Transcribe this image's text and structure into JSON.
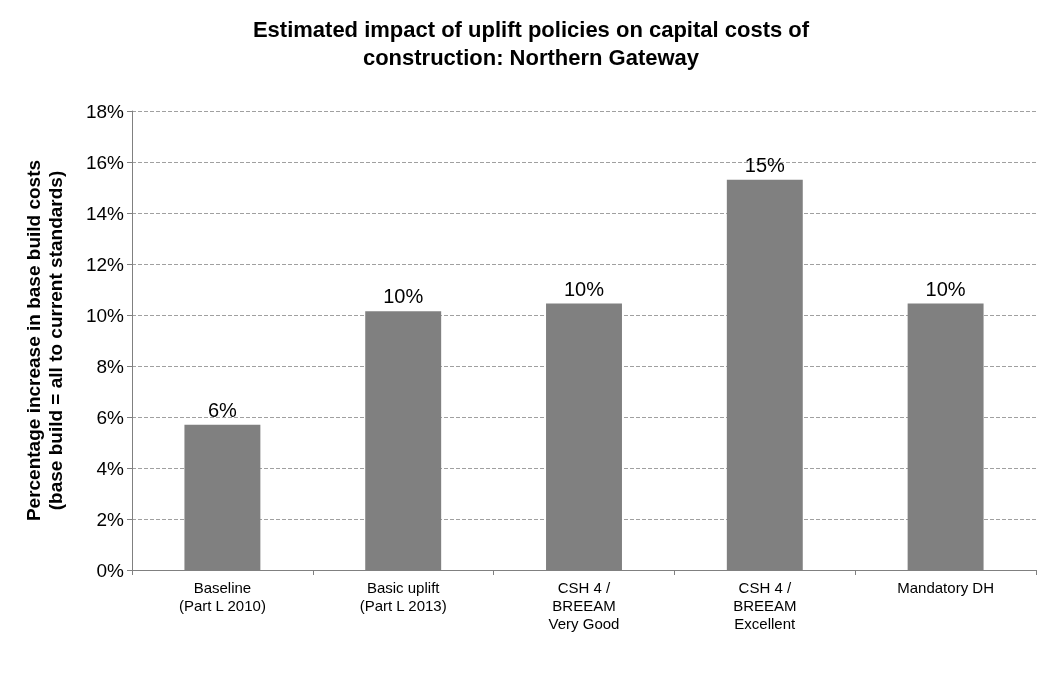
{
  "chart_data": {
    "type": "bar",
    "title": "Estimated impact of uplift policies on capital costs of\nconstruction: Northern Gateway",
    "ylabel": "Percentage increase in base build costs\n(base build = all to current standards)",
    "categories": [
      "Baseline\n(Part L 2010)",
      "Basic uplift\n(Part L 2013)",
      "CSH 4 /\nBREEAM\nVery Good",
      "CSH 4 /\nBREEAM\nExcellent",
      "Mandatory DH"
    ],
    "values": [
      5.7,
      10.15,
      10.45,
      15.3,
      10.45
    ],
    "value_labels": [
      "6%",
      "10%",
      "10%",
      "15%",
      "10%"
    ],
    "color": "#808080",
    "ylim": [
      0,
      18
    ],
    "yticks": [
      {
        "value": 0,
        "label": "0%"
      },
      {
        "value": 2,
        "label": "2%"
      },
      {
        "value": 4,
        "label": "4%"
      },
      {
        "value": 6,
        "label": "6%"
      },
      {
        "value": 8,
        "label": "8%"
      },
      {
        "value": 10,
        "label": "10%"
      },
      {
        "value": 12,
        "label": "12%"
      },
      {
        "value": 14,
        "label": "14%"
      },
      {
        "value": 16,
        "label": "16%"
      },
      {
        "value": 18,
        "label": "18%"
      }
    ],
    "grid": "y"
  }
}
